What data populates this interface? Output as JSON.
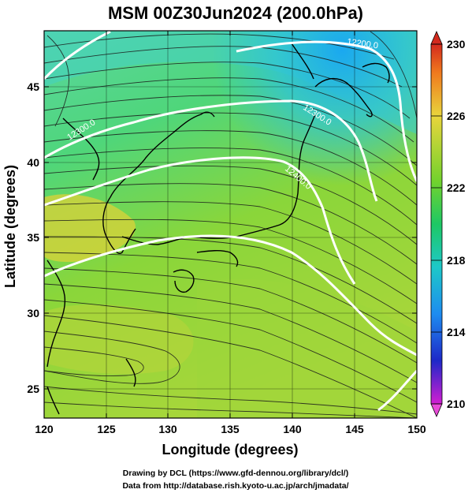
{
  "title": "MSM 00Z30Jun2024 (200.0hPa)",
  "xlabel": "Longitude (degrees)",
  "ylabel": "Latitude  (degrees)",
  "x_ticks": [
    "120",
    "125",
    "130",
    "135",
    "140",
    "145",
    "150"
  ],
  "y_ticks": [
    "25",
    "30",
    "35",
    "40",
    "45"
  ],
  "colorbar": {
    "ticks": [
      "230",
      "226",
      "222",
      "218",
      "214",
      "210"
    ],
    "min": 210,
    "max": 230
  },
  "contour_labels": [
    "12200.0",
    "12300.0",
    "12400.0",
    "12300.0"
  ],
  "credits": [
    "Drawing by DCL (https://www.gfd-dennou.org/library/dcl/)",
    "Data from http://database.rish.kyoto-u.ac.jp/arch/jmadata/"
  ],
  "map_data": {
    "lon_range": [
      120,
      150
    ],
    "lat_range": [
      22.5,
      48
    ],
    "field": "temperature (K) with streamlines and geopotential height contours"
  }
}
